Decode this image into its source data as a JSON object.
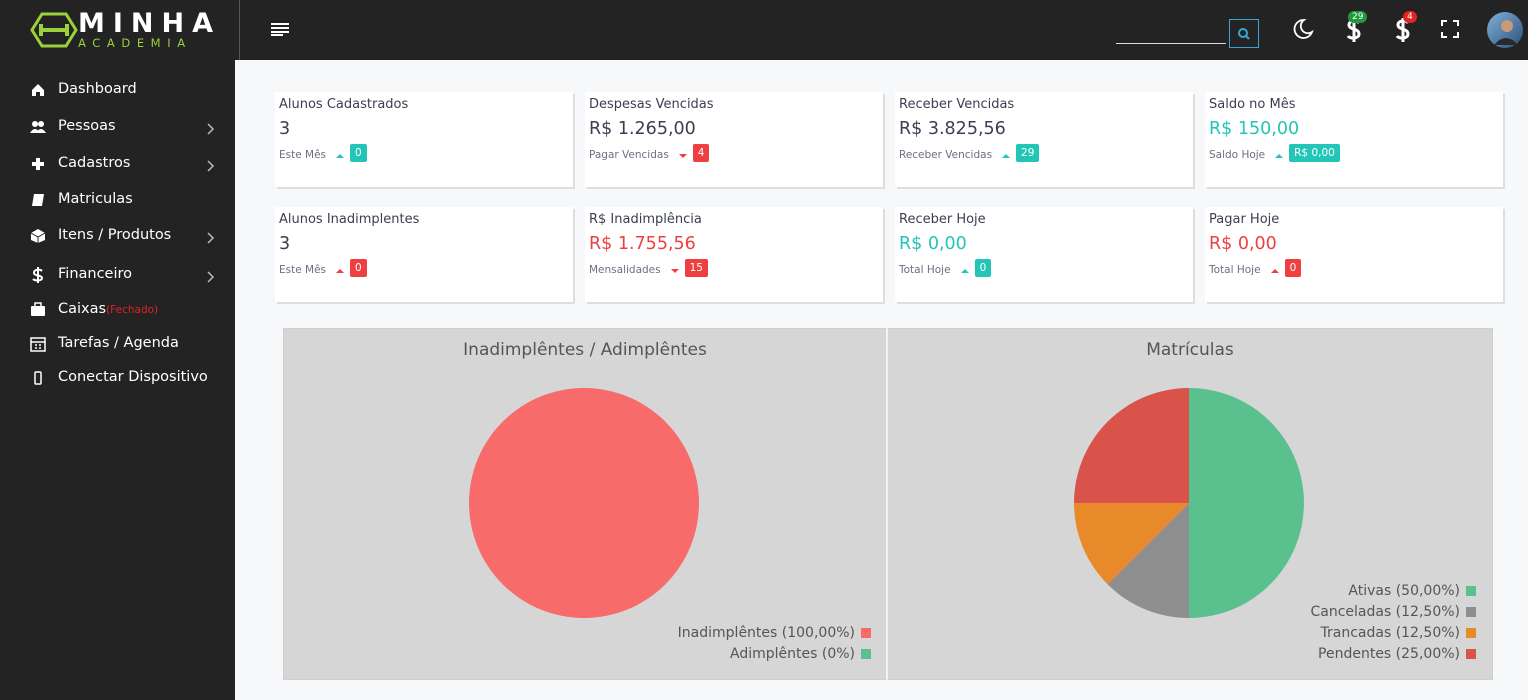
{
  "header": {
    "logo_top": "MINHA",
    "logo_bottom": "ACADEMIA",
    "receber_badge": "29",
    "pagar_badge": "4"
  },
  "sidebar": {
    "items": [
      {
        "label": "Dashboard",
        "submenu": false,
        "icon": "home"
      },
      {
        "label": "Pessoas",
        "submenu": true,
        "icon": "users"
      },
      {
        "label": "Cadastros",
        "submenu": true,
        "icon": "plus"
      },
      {
        "label": "Matriculas",
        "submenu": false,
        "icon": "book"
      },
      {
        "label": "Itens / Produtos",
        "submenu": true,
        "icon": "box"
      },
      {
        "label": "Financeiro",
        "submenu": true,
        "icon": "dollar"
      },
      {
        "label": "Caixas",
        "status": "(Fechado)",
        "submenu": false,
        "icon": "briefcase"
      },
      {
        "label": "Tarefas / Agenda",
        "submenu": false,
        "icon": "calendar"
      },
      {
        "label": "Conectar Dispositivo",
        "submenu": false,
        "icon": "phone"
      }
    ]
  },
  "cards": [
    {
      "title": "Alunos Cadastrados",
      "value": "3",
      "value_color": "#3a3f51",
      "sub": "Este Mês",
      "arrow": "up",
      "badge": "0",
      "badge_color": "#23c6b6"
    },
    {
      "title": "Despesas Vencidas",
      "value": "R$ 1.265,00",
      "value_color": "#3a3f51",
      "sub": "Pagar Vencidas",
      "arrow": "down",
      "badge": "4",
      "badge_color": "#ee4040"
    },
    {
      "title": "Receber Vencidas",
      "value": "R$ 3.825,56",
      "value_color": "#3a3f51",
      "sub": "Receber Vencidas",
      "arrow": "up",
      "badge": "29",
      "badge_color": "#23c6b6"
    },
    {
      "title": "Saldo no Mês",
      "value": "R$ 150,00",
      "value_color": "#23c6b6",
      "sub": "Saldo Hoje",
      "arrow": "up",
      "badge": "R$ 0,00",
      "badge_color": "#23c6b6"
    },
    {
      "title": "Alunos Inadimplentes",
      "value": "3",
      "value_color": "#3a3f51",
      "sub": "Este Mês",
      "arrow": "up",
      "badge": "0",
      "badge_color": "#ee4040"
    },
    {
      "title": "R$ Inadimplência",
      "value": "R$ 1.755,56",
      "value_color": "#ee4040",
      "sub": "Mensalidades",
      "arrow": "down",
      "badge": "15",
      "badge_color": "#ee4040"
    },
    {
      "title": "Receber Hoje",
      "value": "R$ 0,00",
      "value_color": "#23c6b6",
      "sub": "Total Hoje",
      "arrow": "up",
      "badge": "0",
      "badge_color": "#23c6b6"
    },
    {
      "title": "Pagar Hoje",
      "value": "R$ 0,00",
      "value_color": "#ee4040",
      "sub": "Total Hoje",
      "arrow": "up",
      "badge": "0",
      "badge_color": "#ee4040"
    }
  ],
  "chart_data": [
    {
      "type": "pie",
      "title": "Inadimplêntes / Adimplêntes",
      "categories": [
        "Inadimplêntes (100,00%)",
        "Adimplêntes (0%)"
      ],
      "values": [
        100,
        0
      ],
      "colors": [
        "#f76b6b",
        "#5ac18e"
      ],
      "legend": "bottom-right"
    },
    {
      "type": "pie",
      "title": "Matrículas",
      "categories": [
        "Ativas (50,00%)",
        "Canceladas (12,50%)",
        "Trancadas (12,50%)",
        "Pendentes (25,00%)"
      ],
      "values": [
        50,
        12.5,
        12.5,
        25
      ],
      "colors": [
        "#5ac18e",
        "#8e8e8e",
        "#e8892a",
        "#d9534a"
      ],
      "legend": "bottom-right"
    }
  ]
}
